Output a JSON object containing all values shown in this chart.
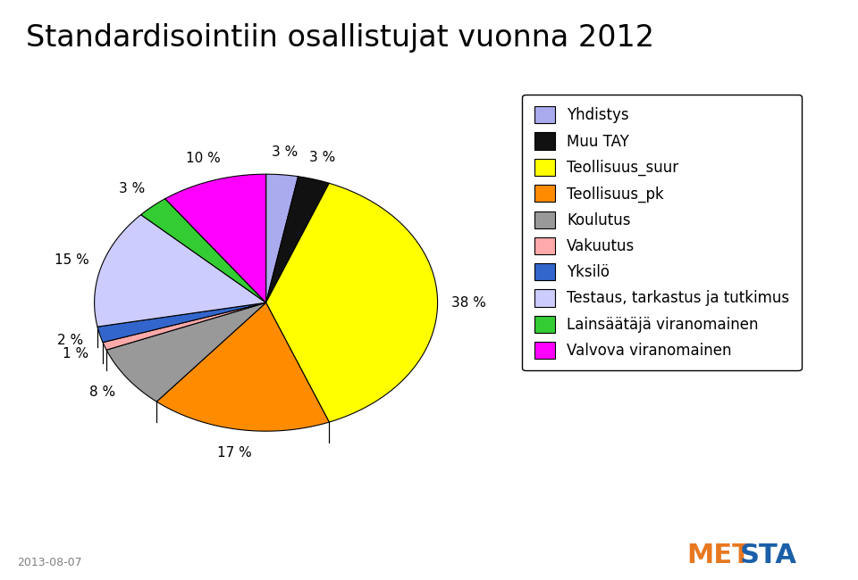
{
  "title": "Standardisointiin osallistujat vuonna 2012",
  "title_color": "#000000",
  "title_fontsize": 24,
  "date_text": "2013-08-07",
  "labels": [
    "Yhdistys",
    "Muu TAY",
    "Teollisuus_suur",
    "Teollisuus_pk",
    "Koulutus",
    "Vakuutus",
    "Yksilö",
    "Testaus, tarkastus ja tutkimus",
    "Lainsäätäjä viranomainen",
    "Valvova viranomainen"
  ],
  "values": [
    3,
    3,
    38,
    17,
    8,
    1,
    2,
    15,
    3,
    10
  ],
  "colors": [
    "#aaaaee",
    "#111111",
    "#ffff00",
    "#ff8c00",
    "#999999",
    "#ffaaaa",
    "#3366cc",
    "#ccccff",
    "#33cc33",
    "#ff00ff"
  ],
  "dark_colors": [
    "#7777bb",
    "#000000",
    "#aaaa00",
    "#cc6600",
    "#666666",
    "#cc7777",
    "#224499",
    "#9999cc",
    "#229922",
    "#cc00cc"
  ],
  "startangle": 90,
  "legend_fontsize": 12,
  "figsize": [
    9.6,
    6.5
  ],
  "dpi": 100
}
